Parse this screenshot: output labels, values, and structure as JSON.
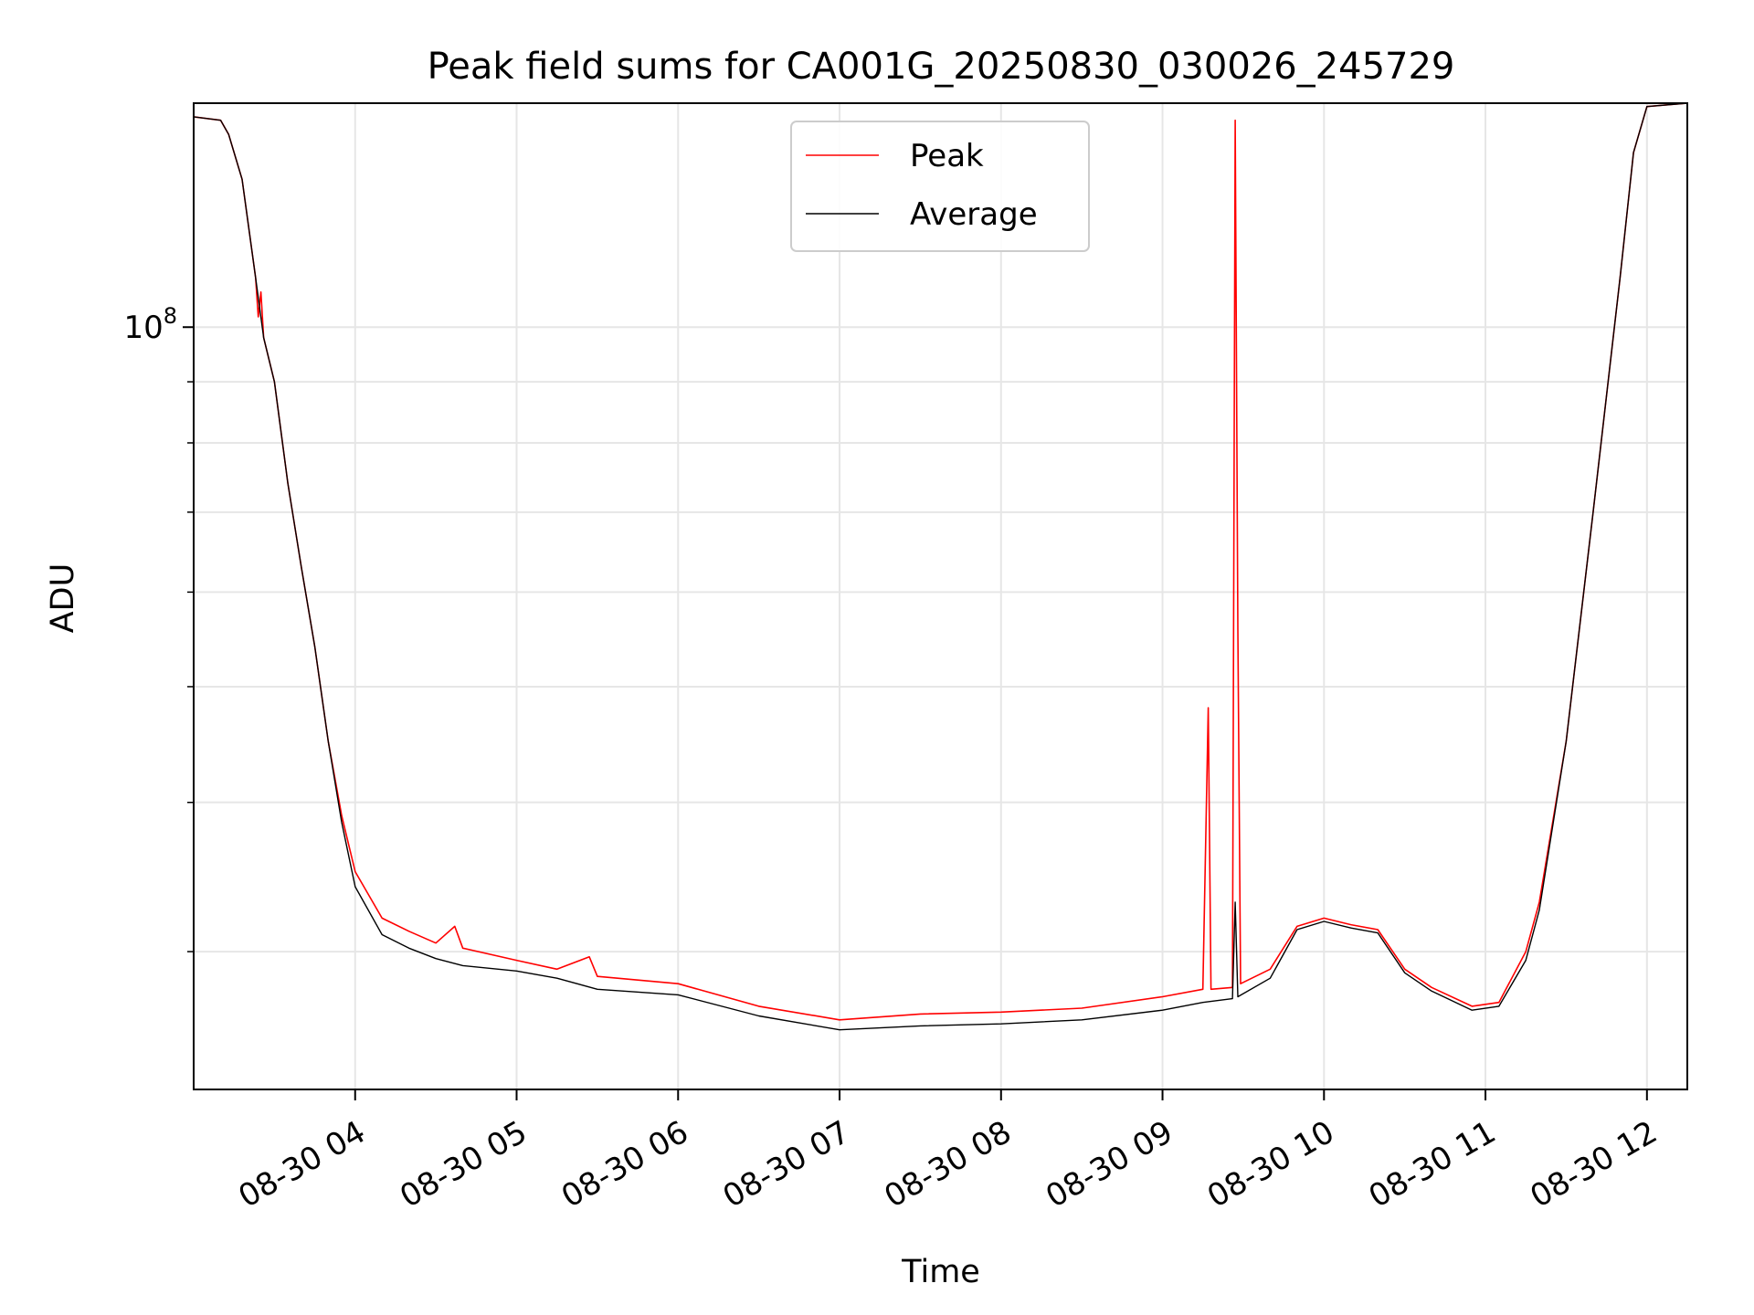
{
  "chart_data": {
    "type": "line",
    "title": "Peak field sums for CA001G_20250830_030026_245729",
    "xlabel": "Time",
    "ylabel": "ADU",
    "y_scale": "log",
    "ylim": [
      23000000,
      154000000
    ],
    "xlim": [
      "2025-08-30 03:00",
      "2025-08-30 12:15"
    ],
    "grid": true,
    "legend_position": "top-center",
    "x_ticks": [
      {
        "t": "2025-08-30 04:00",
        "label": "08-30 04"
      },
      {
        "t": "2025-08-30 05:00",
        "label": "08-30 05"
      },
      {
        "t": "2025-08-30 06:00",
        "label": "08-30 06"
      },
      {
        "t": "2025-08-30 07:00",
        "label": "08-30 07"
      },
      {
        "t": "2025-08-30 08:00",
        "label": "08-30 08"
      },
      {
        "t": "2025-08-30 09:00",
        "label": "08-30 09"
      },
      {
        "t": "2025-08-30 10:00",
        "label": "08-30 10"
      },
      {
        "t": "2025-08-30 11:00",
        "label": "08-30 11"
      },
      {
        "t": "2025-08-30 12:00",
        "label": "08-30 12"
      }
    ],
    "y_major_tick": {
      "value": 100000000,
      "base": "10",
      "exponent": "8"
    },
    "y_minor_ticks": [
      30000000,
      40000000,
      50000000,
      60000000,
      70000000,
      80000000,
      90000000
    ],
    "series": [
      {
        "name": "Peak",
        "color": "#ff0000",
        "points": [
          [
            "2025-08-30 03:00",
            150000000
          ],
          [
            "2025-08-30 03:10",
            149000000
          ],
          [
            "2025-08-30 03:13",
            145000000
          ],
          [
            "2025-08-30 03:18",
            133000000
          ],
          [
            "2025-08-30 03:23",
            110000000
          ],
          [
            "2025-08-30 03:24",
            102000000
          ],
          [
            "2025-08-30 03:25",
            107000000
          ],
          [
            "2025-08-30 03:26",
            98000000
          ],
          [
            "2025-08-30 03:30",
            90000000
          ],
          [
            "2025-08-30 03:35",
            74000000
          ],
          [
            "2025-08-30 03:40",
            63000000
          ],
          [
            "2025-08-30 03:45",
            54000000
          ],
          [
            "2025-08-30 03:50",
            45000000
          ],
          [
            "2025-08-30 03:55",
            39000000
          ],
          [
            "2025-08-30 04:00",
            35000000
          ],
          [
            "2025-08-30 04:10",
            32000000
          ],
          [
            "2025-08-30 04:20",
            31200000
          ],
          [
            "2025-08-30 04:30",
            30500000
          ],
          [
            "2025-08-30 04:37",
            31500000
          ],
          [
            "2025-08-30 04:40",
            30200000
          ],
          [
            "2025-08-30 05:00",
            29500000
          ],
          [
            "2025-08-30 05:15",
            29000000
          ],
          [
            "2025-08-30 05:27",
            29700000
          ],
          [
            "2025-08-30 05:30",
            28600000
          ],
          [
            "2025-08-30 06:00",
            28200000
          ],
          [
            "2025-08-30 06:30",
            27000000
          ],
          [
            "2025-08-30 07:00",
            26300000
          ],
          [
            "2025-08-30 07:30",
            26600000
          ],
          [
            "2025-08-30 08:00",
            26700000
          ],
          [
            "2025-08-30 08:30",
            26900000
          ],
          [
            "2025-08-30 09:00",
            27500000
          ],
          [
            "2025-08-30 09:15",
            27900000
          ],
          [
            "2025-08-30 09:17",
            48000000
          ],
          [
            "2025-08-30 09:18",
            27900000
          ],
          [
            "2025-08-30 09:26",
            28000000
          ],
          [
            "2025-08-30 09:27",
            149000000
          ],
          [
            "2025-08-30 09:28",
            56000000
          ],
          [
            "2025-08-30 09:29",
            28200000
          ],
          [
            "2025-08-30 09:40",
            29000000
          ],
          [
            "2025-08-30 09:50",
            31500000
          ],
          [
            "2025-08-30 10:00",
            32000000
          ],
          [
            "2025-08-30 10:10",
            31600000
          ],
          [
            "2025-08-30 10:20",
            31300000
          ],
          [
            "2025-08-30 10:30",
            29000000
          ],
          [
            "2025-08-30 10:40",
            28000000
          ],
          [
            "2025-08-30 10:55",
            27000000
          ],
          [
            "2025-08-30 11:05",
            27200000
          ],
          [
            "2025-08-30 11:15",
            30000000
          ],
          [
            "2025-08-30 11:20",
            33000000
          ],
          [
            "2025-08-30 11:30",
            45000000
          ],
          [
            "2025-08-30 11:40",
            70000000
          ],
          [
            "2025-08-30 11:50",
            110000000
          ],
          [
            "2025-08-30 11:55",
            140000000
          ],
          [
            "2025-08-30 12:00",
            153000000
          ],
          [
            "2025-08-30 12:15",
            154000000
          ]
        ]
      },
      {
        "name": "Average",
        "color": "#000000",
        "points": [
          [
            "2025-08-30 03:00",
            150000000
          ],
          [
            "2025-08-30 03:10",
            149000000
          ],
          [
            "2025-08-30 03:13",
            145000000
          ],
          [
            "2025-08-30 03:18",
            133000000
          ],
          [
            "2025-08-30 03:23",
            110000000
          ],
          [
            "2025-08-30 03:26",
            98000000
          ],
          [
            "2025-08-30 03:30",
            90000000
          ],
          [
            "2025-08-30 03:35",
            74000000
          ],
          [
            "2025-08-30 03:40",
            63000000
          ],
          [
            "2025-08-30 03:45",
            54000000
          ],
          [
            "2025-08-30 03:50",
            45000000
          ],
          [
            "2025-08-30 03:55",
            38500000
          ],
          [
            "2025-08-30 04:00",
            34000000
          ],
          [
            "2025-08-30 04:10",
            31000000
          ],
          [
            "2025-08-30 04:20",
            30200000
          ],
          [
            "2025-08-30 04:30",
            29600000
          ],
          [
            "2025-08-30 04:40",
            29200000
          ],
          [
            "2025-08-30 05:00",
            28900000
          ],
          [
            "2025-08-30 05:15",
            28500000
          ],
          [
            "2025-08-30 05:30",
            27900000
          ],
          [
            "2025-08-30 06:00",
            27600000
          ],
          [
            "2025-08-30 06:30",
            26500000
          ],
          [
            "2025-08-30 07:00",
            25800000
          ],
          [
            "2025-08-30 07:30",
            26000000
          ],
          [
            "2025-08-30 08:00",
            26100000
          ],
          [
            "2025-08-30 08:30",
            26300000
          ],
          [
            "2025-08-30 09:00",
            26800000
          ],
          [
            "2025-08-30 09:15",
            27200000
          ],
          [
            "2025-08-30 09:26",
            27400000
          ],
          [
            "2025-08-30 09:27",
            33000000
          ],
          [
            "2025-08-30 09:28",
            27500000
          ],
          [
            "2025-08-30 09:40",
            28500000
          ],
          [
            "2025-08-30 09:50",
            31300000
          ],
          [
            "2025-08-30 10:00",
            31800000
          ],
          [
            "2025-08-30 10:10",
            31400000
          ],
          [
            "2025-08-30 10:20",
            31100000
          ],
          [
            "2025-08-30 10:30",
            28800000
          ],
          [
            "2025-08-30 10:40",
            27800000
          ],
          [
            "2025-08-30 10:55",
            26800000
          ],
          [
            "2025-08-30 11:05",
            27000000
          ],
          [
            "2025-08-30 11:15",
            29500000
          ],
          [
            "2025-08-30 11:20",
            32500000
          ],
          [
            "2025-08-30 11:30",
            45000000
          ],
          [
            "2025-08-30 11:40",
            70000000
          ],
          [
            "2025-08-30 11:50",
            110000000
          ],
          [
            "2025-08-30 11:55",
            140000000
          ],
          [
            "2025-08-30 12:00",
            153000000
          ],
          [
            "2025-08-30 12:15",
            154000000
          ]
        ]
      }
    ]
  }
}
